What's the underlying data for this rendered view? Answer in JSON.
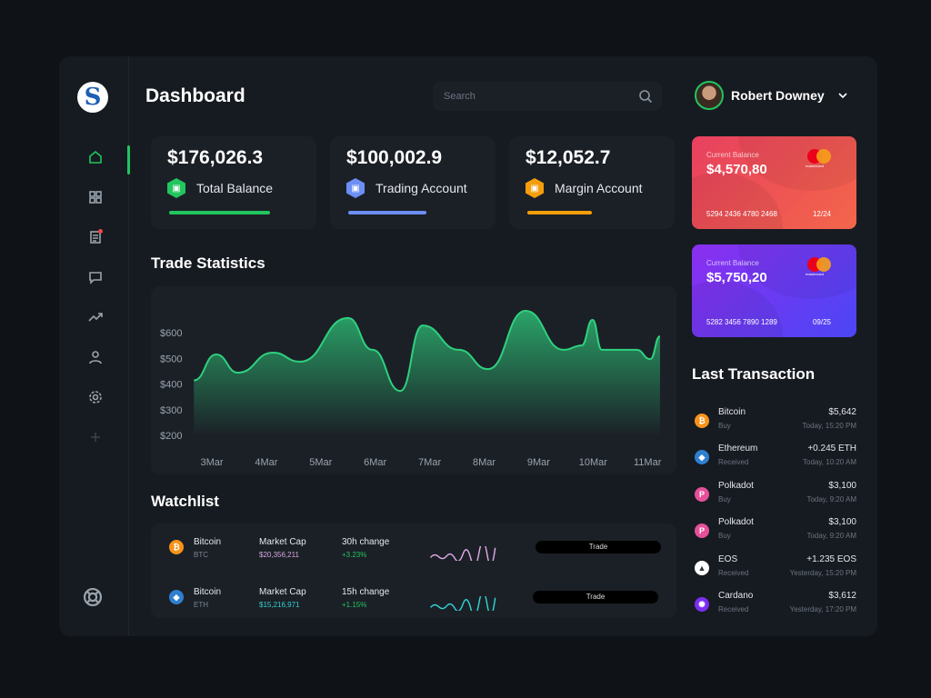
{
  "header": {
    "title": "Dashboard",
    "search_placeholder": "Search",
    "user_name": "Robert Downey"
  },
  "logo": "S",
  "sidebar": {
    "items": [
      "home-icon",
      "grid-icon",
      "document-icon",
      "chat-icon",
      "trending-icon",
      "user-icon",
      "gear-icon",
      "plus-icon"
    ],
    "footer": "lifebuoy-icon",
    "active": "home-icon"
  },
  "stats": [
    {
      "value": "$176,026.3",
      "label": "Total Balance",
      "color": "#22c55e",
      "progress": 0.75
    },
    {
      "value": "$100,002.9",
      "label": "Trading Account",
      "color": "#6d8ef5",
      "progress": 0.58
    },
    {
      "value": "$12,052.7",
      "label": "Margin Account",
      "color": "#f59e0b",
      "progress": 0.48
    }
  ],
  "trade_stats": {
    "title": "Trade Statistics"
  },
  "chart_data": {
    "type": "area",
    "yticks": [
      "$200",
      "$300",
      "$400",
      "$500",
      "$600"
    ],
    "ylim": [
      200,
      700
    ],
    "xticks": [
      "3Mar",
      "4Mar",
      "5Mar",
      "6Mar",
      "7Mar",
      "8Mar",
      "9Mar",
      "10Mar",
      "11Mar"
    ],
    "x": [
      2.67,
      3.08,
      3.48,
      4.12,
      4.62,
      5.5,
      5.95,
      6.46,
      6.87,
      7.54,
      8.07,
      8.76,
      9.46,
      9.79,
      9.99,
      10.16,
      10.8,
      11.05,
      11.23
    ],
    "values": [
      414,
      515,
      444,
      522,
      487,
      657,
      533,
      373,
      628,
      533,
      458,
      685,
      533,
      550,
      650,
      533,
      533,
      497,
      586
    ],
    "color": "#2fd07e",
    "grid": false
  },
  "watchlist": {
    "title": "Watchlist",
    "rows": [
      {
        "name": "Bitcoin",
        "symbol": "BTC",
        "cap_label": "Market Cap",
        "cap": "$20,356,211",
        "change_label": "30h change",
        "change": "+3.23%",
        "cap_color": "#d9a6e0",
        "spark_color": "#e3a9e8",
        "trade": "Trade",
        "coin_color": "#f7931a",
        "glyph": "₿"
      },
      {
        "name": "Bitcoin",
        "symbol": "ETH",
        "cap_label": "Market Cap",
        "cap": "$15,216,971",
        "change_label": "15h change",
        "change": "+1.15%",
        "cap_color": "#33d1d1",
        "spark_color": "#2fd6d6",
        "trade": "Trade",
        "coin_color": "#2f7fcf",
        "glyph": "◆"
      }
    ]
  },
  "cards": [
    {
      "label": "Current Balance",
      "balance": "$4,570,80",
      "number": "5294 2436 4780 2468",
      "expiry": "12/24",
      "brand": "mastercard",
      "gradient": [
        "#e8405f",
        "#f3664a"
      ]
    },
    {
      "label": "Current Balance",
      "balance": "$5,750,20",
      "number": "5282 3456 7890 1289",
      "expiry": "09/25",
      "brand": "mastercard",
      "gradient": [
        "#8b2ff0",
        "#4b46f5"
      ]
    }
  ],
  "transactions": {
    "title": "Last Transaction",
    "items": [
      {
        "name": "Bitcoin",
        "type": "Buy",
        "amount": "$5,642",
        "time": "Today, 15:20 PM",
        "color": "#f7931a",
        "glyph": "₿"
      },
      {
        "name": "Ethereum",
        "type": "Received",
        "amount": "+0.245 ETH",
        "time": "Today, 10:20 AM",
        "color": "#2f7fcf",
        "glyph": "◆"
      },
      {
        "name": "Polkadot",
        "type": "Buy",
        "amount": "$3,100",
        "time": "Today, 9:20 AM",
        "color": "#e6509a",
        "glyph": "P"
      },
      {
        "name": "Polkadot",
        "type": "Buy",
        "amount": "$3,100",
        "time": "Today, 9:20 AM",
        "color": "#e6509a",
        "glyph": "P"
      },
      {
        "name": "EOS",
        "type": "Received",
        "amount": "+1.235 EOS",
        "time": "Yesterday, 15:20 PM",
        "color": "#ffffff",
        "glyph": "▲"
      },
      {
        "name": "Cardano",
        "type": "Received",
        "amount": "$3,612",
        "time": "Yesterday, 17:20 PM",
        "color": "#7c2ff0",
        "glyph": "✺"
      }
    ]
  }
}
